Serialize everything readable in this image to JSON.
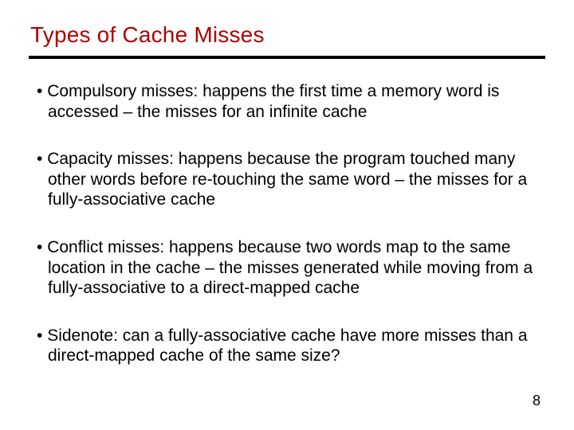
{
  "title_color": "#b00000",
  "rule_color": "#000000",
  "text_color": "#000000",
  "background_color": "#ffffff",
  "title": "Types of Cache Misses",
  "bullets": [
    "Compulsory misses: happens the first time a memory word is accessed – the misses for an infinite cache",
    "Capacity misses: happens because the program touched many other words before re-touching the same word – the misses for a fully-associative cache",
    "Conflict misses: happens because two words map to the same location in the cache – the misses generated while moving from a fully-associative to a direct-mapped cache",
    "Sidenote: can a fully-associative cache have more misses than a direct-mapped cache of the same size?"
  ],
  "page_number": "8",
  "title_fontsize": 28,
  "body_fontsize": 21
}
